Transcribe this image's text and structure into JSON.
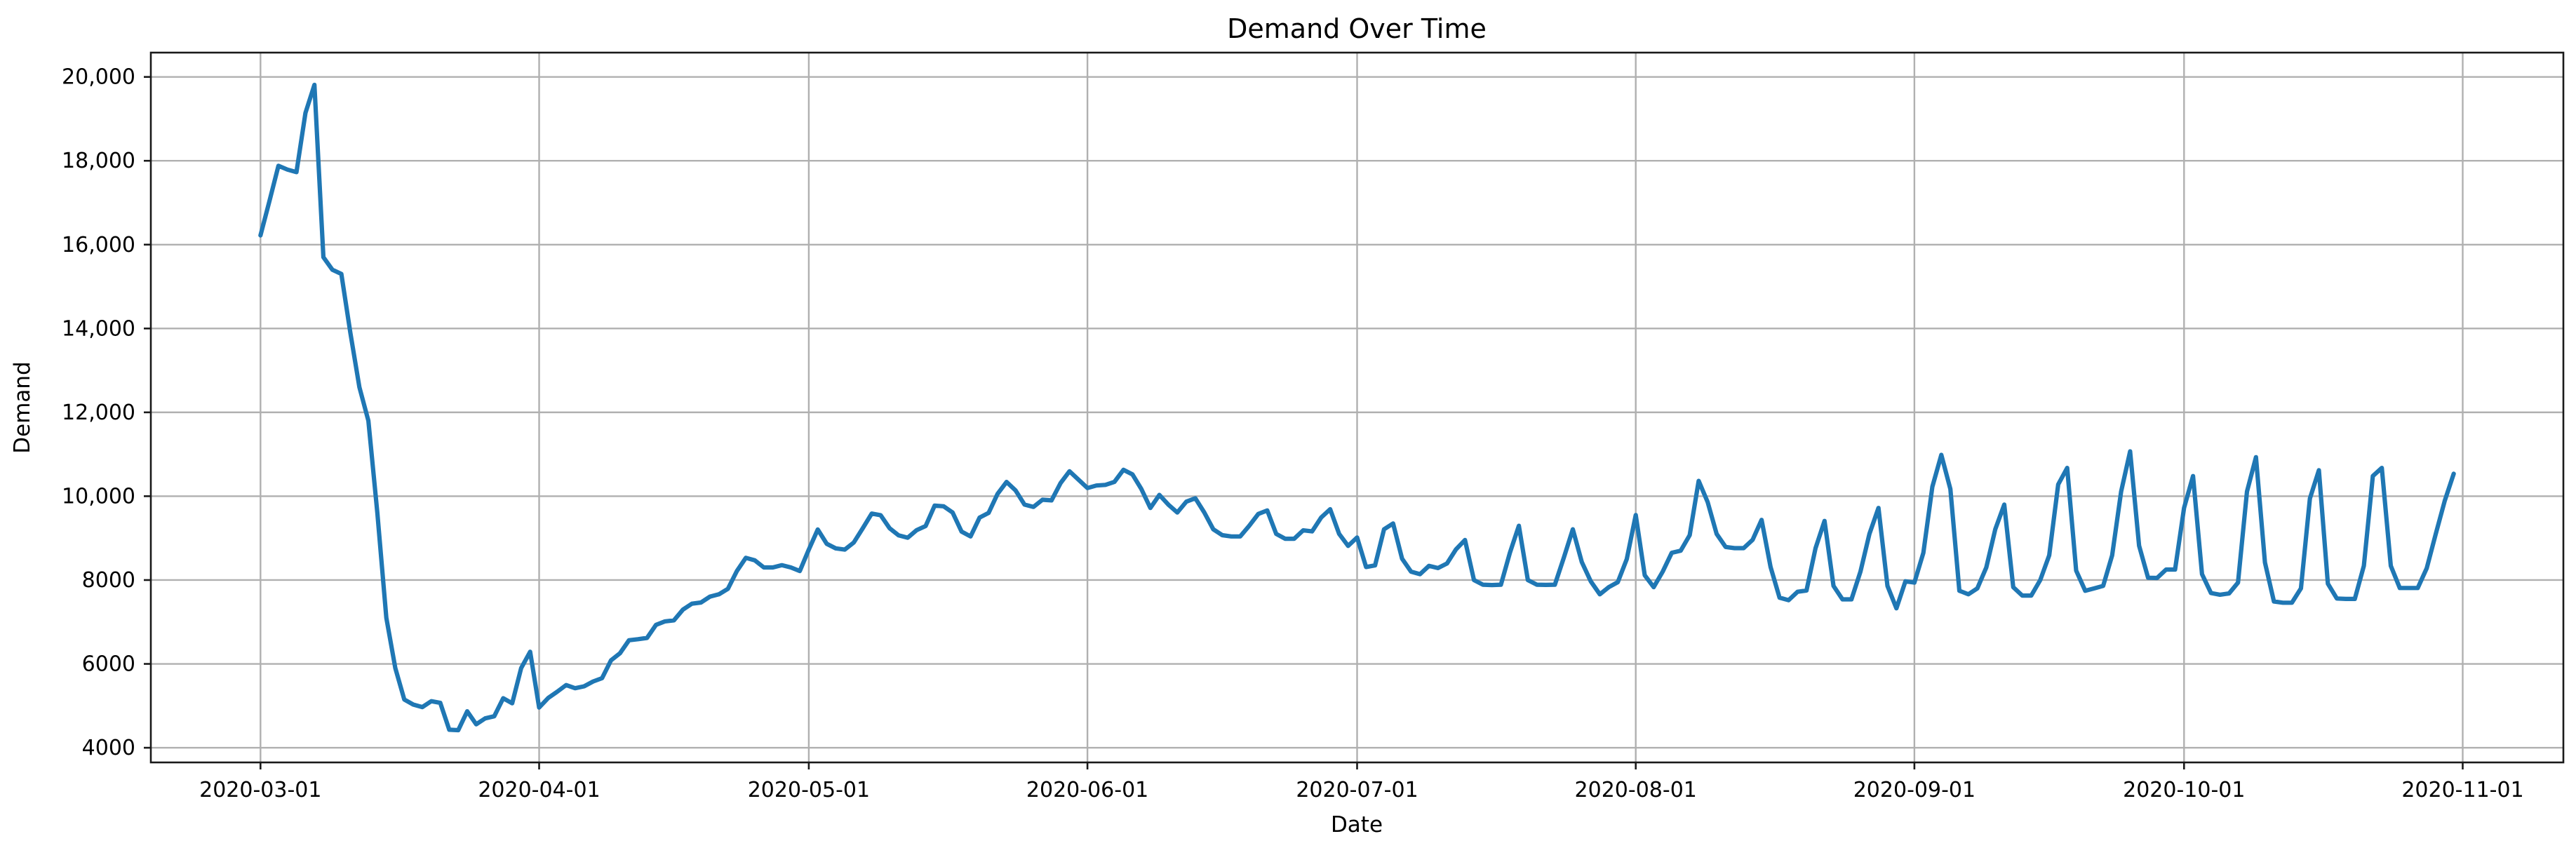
{
  "page": {
    "background": "#ffffff"
  },
  "chart_data": {
    "type": "line",
    "title": "Demand Over Time",
    "xlabel": "Date",
    "ylabel": "Demand",
    "grid": true,
    "legend": false,
    "line_color": "#1f77b4",
    "grid_color": "#b0b0b0",
    "spine_color": "#1a1a1a",
    "tick_color": "#1a1a1a",
    "text_color": "#000000",
    "ylim": [
      3650,
      20580
    ],
    "xlim": [
      "2020-02-17",
      "2020-11-12"
    ],
    "x_tick_labels": [
      "2020-03-01",
      "2020-04-01",
      "2020-05-01",
      "2020-06-01",
      "2020-07-01",
      "2020-08-01",
      "2020-09-01",
      "2020-10-01",
      "2020-11-01"
    ],
    "y_ticks": [
      {
        "value": 4000,
        "label": "4000"
      },
      {
        "value": 6000,
        "label": "6000"
      },
      {
        "value": 8000,
        "label": "8000"
      },
      {
        "value": 10000,
        "label": "10,000"
      },
      {
        "value": 12000,
        "label": "12,000"
      },
      {
        "value": 14000,
        "label": "14,000"
      },
      {
        "value": 16000,
        "label": "16,000"
      },
      {
        "value": 18000,
        "label": "18,000"
      },
      {
        "value": 20000,
        "label": "20,000"
      }
    ],
    "series": [
      {
        "name": "Demand",
        "start_date": "2020-03-01",
        "end_date": "2020-10-31",
        "frequency": "daily",
        "values": [
          16220,
          17040,
          17880,
          17790,
          17730,
          19140,
          19810,
          15700,
          15400,
          15300,
          13900,
          12600,
          11800,
          9600,
          7100,
          5900,
          5150,
          5030,
          4970,
          5110,
          5070,
          4430,
          4420,
          4870,
          4560,
          4700,
          4750,
          5180,
          5060,
          5900,
          6290,
          4960,
          5185,
          5335,
          5495,
          5420,
          5465,
          5580,
          5660,
          6085,
          6255,
          6565,
          6590,
          6620,
          6930,
          7015,
          7040,
          7295,
          7435,
          7465,
          7605,
          7660,
          7790,
          8215,
          8530,
          8470,
          8300,
          8300,
          8355,
          8300,
          8215,
          8725,
          9205,
          8865,
          8755,
          8725,
          8895,
          9235,
          9585,
          9545,
          9235,
          9065,
          9010,
          9190,
          9290,
          9775,
          9760,
          9610,
          9155,
          9040,
          9490,
          9600,
          10055,
          10340,
          10140,
          9800,
          9745,
          9915,
          9900,
          10310,
          10595,
          10395,
          10195,
          10255,
          10270,
          10340,
          10630,
          10520,
          10170,
          9720,
          10030,
          9800,
          9610,
          9870,
          9950,
          9610,
          9210,
          9070,
          9040,
          9040,
          9295,
          9575,
          9660,
          9100,
          8985,
          8985,
          9185,
          9160,
          9490,
          9690,
          9100,
          8815,
          9015,
          8310,
          8350,
          9210,
          9350,
          8510,
          8200,
          8140,
          8340,
          8285,
          8395,
          8730,
          8955,
          8000,
          7890,
          7880,
          7890,
          8650,
          9295,
          8000,
          7890,
          7885,
          7890,
          8535,
          9210,
          8430,
          7970,
          7660,
          7830,
          7950,
          8500,
          9550,
          8115,
          7830,
          8200,
          8650,
          8700,
          9070,
          10365,
          9860,
          9100,
          8790,
          8760,
          8760,
          8960,
          9435,
          8310,
          7580,
          7520,
          7720,
          7750,
          8760,
          9410,
          7860,
          7540,
          7540,
          8200,
          9100,
          9720,
          7860,
          7325,
          7970,
          7940,
          8650,
          10225,
          10985,
          10170,
          7745,
          7660,
          7800,
          8300,
          9210,
          9800,
          7830,
          7630,
          7630,
          8000,
          8590,
          10280,
          10675,
          8225,
          7745,
          7800,
          7860,
          8590,
          10110,
          11070,
          8820,
          8055,
          8050,
          8250,
          8250,
          9720,
          10480,
          8140,
          7690,
          7650,
          7680,
          7940,
          10110,
          10930,
          8420,
          7490,
          7460,
          7460,
          7800,
          9945,
          10620,
          7915,
          7560,
          7550,
          7550,
          8340,
          10480,
          10675,
          8340,
          7810,
          7810,
          7810,
          8280,
          9100,
          9890,
          10535
        ]
      }
    ]
  }
}
